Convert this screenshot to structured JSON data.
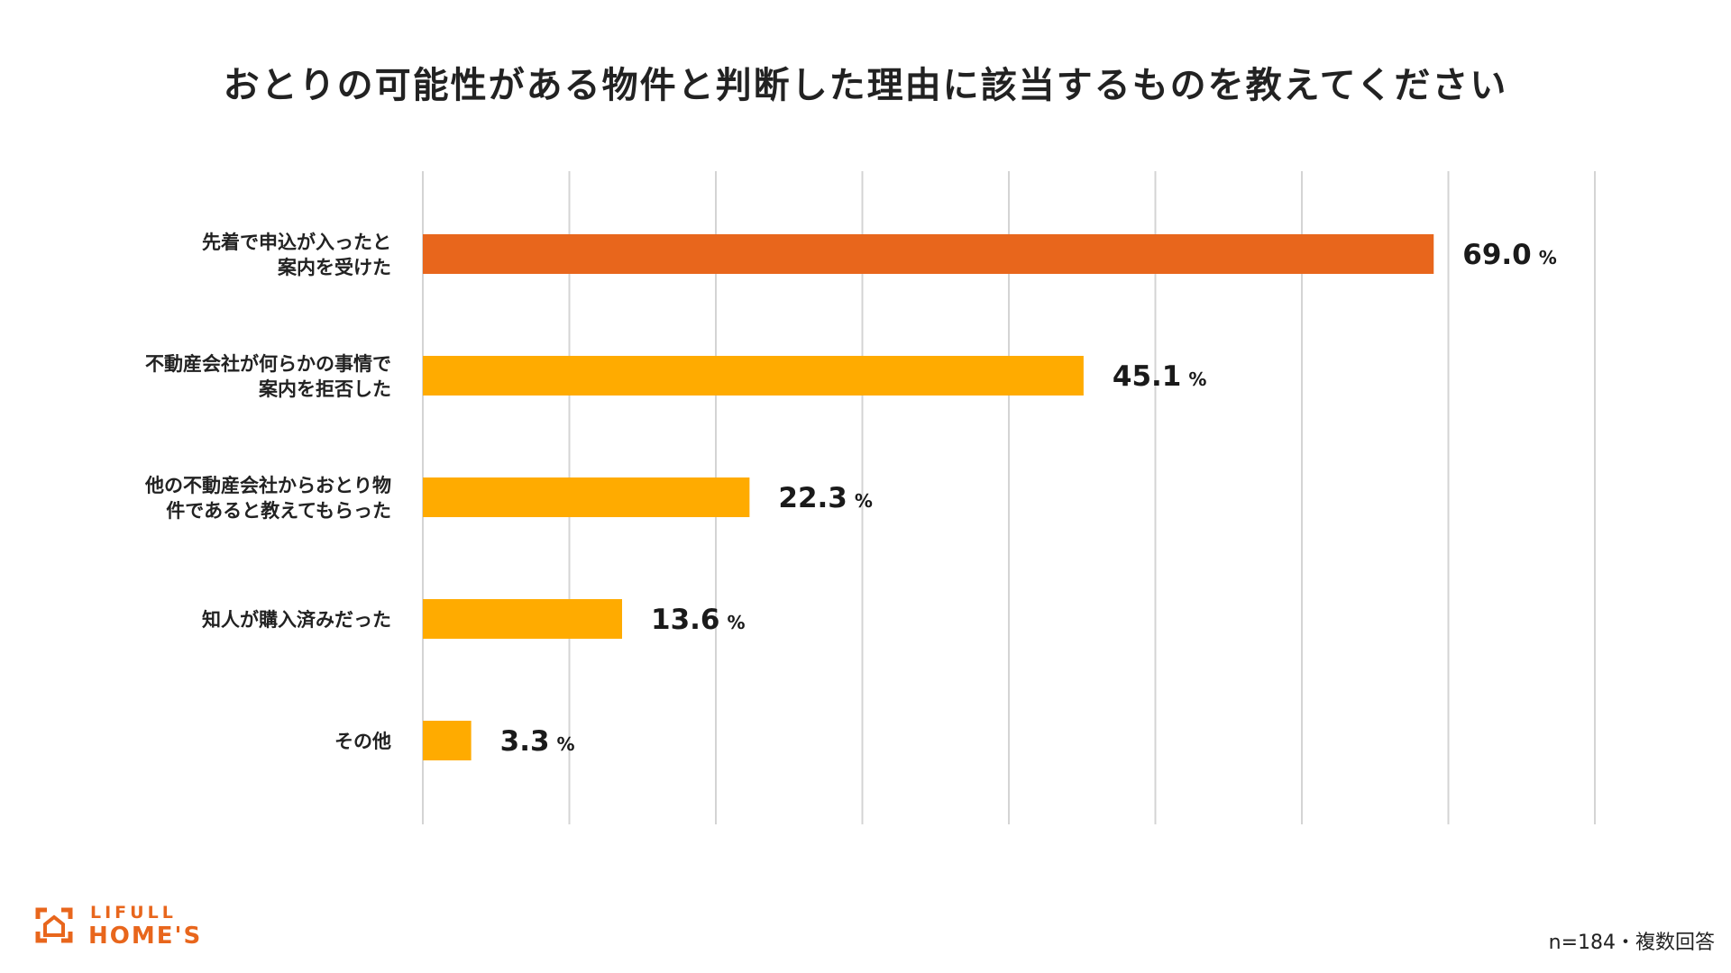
{
  "chart_data": {
    "type": "bar",
    "orientation": "horizontal",
    "title": "おとりの可能性がある物件と判断した理由に該当するものを教えてください",
    "categories": [
      [
        "先着で申込が入ったと",
        "案内を受けた"
      ],
      [
        "不動産会社が何らかの事情で",
        "案内を拒否した"
      ],
      [
        "他の不動産会社からおとり物",
        "件であると教えてもらった"
      ],
      [
        "知人が購入済みだった"
      ],
      [
        "その他"
      ]
    ],
    "values": [
      69.0,
      45.1,
      22.3,
      13.6,
      3.3
    ],
    "value_labels": [
      "69.0",
      "45.1",
      "22.3",
      "13.6",
      "3.3"
    ],
    "unit": "%",
    "xlim": [
      0,
      80
    ],
    "gridlines": true,
    "colors": [
      "#e8661c",
      "#ffab00",
      "#ffab00",
      "#ffab00",
      "#ffab00"
    ]
  },
  "footer": {
    "note": "n=184・複数回答",
    "logo_top": "LIFULL",
    "logo_bottom": "HOME'S"
  }
}
